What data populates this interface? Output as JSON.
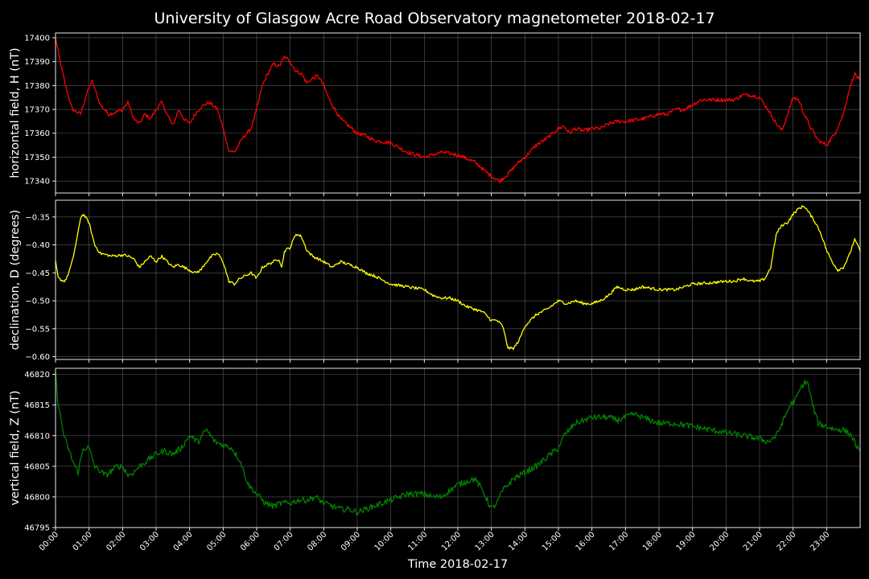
{
  "title": "University of Glasgow Acre Road Observatory magnetometer 2018-02-17",
  "chart_data": {
    "type": "line",
    "title": "University of Glasgow Acre Road Observatory magnetometer 2018-02-17",
    "xlabel": "Time 2018-02-17",
    "x_ticks": [
      "00:00",
      "01:00",
      "02:00",
      "03:00",
      "04:00",
      "05:00",
      "06:00",
      "07:00",
      "08:00",
      "09:00",
      "10:00",
      "11:00",
      "12:00",
      "13:00",
      "14:00",
      "15:00",
      "16:00",
      "17:00",
      "18:00",
      "19:00",
      "20:00",
      "21:00",
      "22:00",
      "23:00"
    ],
    "xlim": [
      "00:00",
      "24:00"
    ],
    "grid": true,
    "background": "#000000",
    "panels": [
      {
        "ylabel": "horizontal field, H (nT)",
        "color": "#ff0000",
        "ylim": [
          17335,
          17402
        ],
        "yticks": [
          17340,
          17350,
          17360,
          17370,
          17380,
          17390,
          17400
        ],
        "noise": 0.8,
        "series": {
          "x": [
            "00:00",
            "00:10",
            "00:20",
            "00:30",
            "00:45",
            "00:55",
            "01:05",
            "01:20",
            "01:35",
            "01:50",
            "02:00",
            "02:10",
            "02:20",
            "02:30",
            "02:40",
            "02:50",
            "03:00",
            "03:10",
            "03:20",
            "03:30",
            "03:40",
            "03:50",
            "04:00",
            "04:10",
            "04:20",
            "04:35",
            "04:50",
            "05:00",
            "05:10",
            "05:20",
            "05:35",
            "05:50",
            "06:00",
            "06:10",
            "06:20",
            "06:30",
            "06:40",
            "06:50",
            "07:00",
            "07:10",
            "07:20",
            "07:30",
            "07:40",
            "07:50",
            "08:00",
            "08:10",
            "08:20",
            "08:30",
            "08:45",
            "09:00",
            "09:15",
            "09:30",
            "10:00",
            "10:30",
            "11:00",
            "11:30",
            "12:00",
            "12:30",
            "12:45",
            "13:00",
            "13:15",
            "13:30",
            "13:45",
            "14:00",
            "14:20",
            "14:40",
            "15:00",
            "15:10",
            "15:20",
            "15:30",
            "15:45",
            "16:00",
            "16:15",
            "16:30",
            "16:45",
            "17:00",
            "17:30",
            "17:45",
            "18:00",
            "18:15",
            "18:30",
            "18:45",
            "19:00",
            "19:15",
            "19:30",
            "19:45",
            "20:00",
            "20:15",
            "20:30",
            "20:45",
            "21:00",
            "21:15",
            "21:30",
            "21:40",
            "21:50",
            "22:00",
            "22:10",
            "22:20",
            "22:30",
            "22:45",
            "23:00",
            "23:15",
            "23:30",
            "23:40",
            "23:50",
            "24:00"
          ],
          "y": [
            17400,
            17388,
            17378,
            17370,
            17368,
            17376,
            17382,
            17372,
            17368,
            17369,
            17370,
            17373,
            17366,
            17364,
            17368,
            17366,
            17370,
            17373,
            17368,
            17363,
            17370,
            17366,
            17364,
            17368,
            17371,
            17373,
            17370,
            17362,
            17353,
            17352,
            17358,
            17362,
            17370,
            17380,
            17385,
            17389,
            17388,
            17392,
            17390,
            17386,
            17385,
            17381,
            17383,
            17384,
            17380,
            17374,
            17370,
            17366,
            17363,
            17360,
            17359,
            17357,
            17356,
            17352,
            17350,
            17352,
            17351,
            17348,
            17345,
            17342,
            17340,
            17343,
            17347,
            17350,
            17355,
            17358,
            17362,
            17363,
            17360,
            17362,
            17361,
            17362,
            17362,
            17364,
            17365,
            17365,
            17366,
            17367,
            17368,
            17368,
            17370,
            17370,
            17372,
            17374,
            17374,
            17374,
            17374,
            17374,
            17376,
            17376,
            17375,
            17370,
            17364,
            17361,
            17368,
            17375,
            17374,
            17368,
            17363,
            17357,
            17355,
            17360,
            17368,
            17378,
            17385,
            17382
          ]
        }
      },
      {
        "ylabel": "declination, D (degrees)",
        "color": "#ffff00",
        "ylim": [
          -0.605,
          -0.32
        ],
        "yticks": [
          -0.6,
          -0.55,
          -0.5,
          -0.45,
          -0.4,
          -0.35
        ],
        "ytick_labels": [
          "−0.60",
          "−0.55",
          "−0.50",
          "−0.45",
          "−0.40",
          "−0.35"
        ],
        "noise": 0.0025,
        "series": {
          "x": [
            "00:00",
            "00:05",
            "00:15",
            "00:20",
            "00:30",
            "00:40",
            "00:45",
            "00:50",
            "01:00",
            "01:05",
            "01:10",
            "01:20",
            "01:40",
            "02:00",
            "02:10",
            "02:20",
            "02:30",
            "02:40",
            "02:50",
            "03:00",
            "03:10",
            "03:20",
            "03:30",
            "03:40",
            "03:50",
            "04:00",
            "04:10",
            "04:20",
            "04:30",
            "04:40",
            "04:50",
            "05:00",
            "05:10",
            "05:20",
            "05:30",
            "05:40",
            "05:50",
            "06:00",
            "06:10",
            "06:20",
            "06:30",
            "06:40",
            "06:45",
            "06:50",
            "07:00",
            "07:10",
            "07:20",
            "07:30",
            "07:40",
            "07:50",
            "08:00",
            "08:15",
            "08:30",
            "09:00",
            "09:15",
            "09:30",
            "10:00",
            "10:30",
            "11:00",
            "11:15",
            "11:30",
            "11:45",
            "12:00",
            "12:15",
            "12:30",
            "12:45",
            "13:00",
            "13:10",
            "13:20",
            "13:30",
            "13:40",
            "13:50",
            "14:00",
            "14:20",
            "14:40",
            "15:00",
            "15:15",
            "15:30",
            "15:45",
            "16:00",
            "16:15",
            "16:30",
            "16:45",
            "17:00",
            "17:15",
            "17:30",
            "18:00",
            "18:15",
            "18:30",
            "18:45",
            "19:00",
            "19:30",
            "20:00",
            "20:15",
            "20:30",
            "20:45",
            "21:00",
            "21:10",
            "21:20",
            "21:30",
            "21:40",
            "21:50",
            "22:00",
            "22:10",
            "22:20",
            "22:30",
            "22:40",
            "22:50",
            "23:00",
            "23:10",
            "23:20",
            "23:30",
            "23:40",
            "23:50",
            "24:00"
          ],
          "y": [
            -0.43,
            -0.46,
            -0.465,
            -0.46,
            -0.43,
            -0.38,
            -0.35,
            -0.345,
            -0.36,
            -0.38,
            -0.4,
            -0.415,
            -0.42,
            -0.418,
            -0.42,
            -0.425,
            -0.44,
            -0.43,
            -0.42,
            -0.43,
            -0.42,
            -0.43,
            -0.44,
            -0.435,
            -0.44,
            -0.445,
            -0.45,
            -0.445,
            -0.43,
            -0.42,
            -0.415,
            -0.43,
            -0.465,
            -0.47,
            -0.46,
            -0.455,
            -0.45,
            -0.46,
            -0.44,
            -0.435,
            -0.43,
            -0.425,
            -0.44,
            -0.41,
            -0.405,
            -0.38,
            -0.385,
            -0.41,
            -0.42,
            -0.425,
            -0.43,
            -0.44,
            -0.43,
            -0.44,
            -0.45,
            -0.455,
            -0.47,
            -0.475,
            -0.48,
            -0.49,
            -0.495,
            -0.495,
            -0.5,
            -0.51,
            -0.515,
            -0.52,
            -0.535,
            -0.535,
            -0.545,
            -0.585,
            -0.585,
            -0.57,
            -0.545,
            -0.525,
            -0.515,
            -0.5,
            -0.505,
            -0.5,
            -0.505,
            -0.505,
            -0.5,
            -0.49,
            -0.475,
            -0.48,
            -0.48,
            -0.475,
            -0.48,
            -0.48,
            -0.48,
            -0.475,
            -0.47,
            -0.468,
            -0.465,
            -0.465,
            -0.46,
            -0.465,
            -0.465,
            -0.46,
            -0.44,
            -0.38,
            -0.365,
            -0.36,
            -0.345,
            -0.335,
            -0.33,
            -0.345,
            -0.36,
            -0.38,
            -0.41,
            -0.43,
            -0.445,
            -0.44,
            -0.42,
            -0.39,
            -0.41
          ]
        }
      },
      {
        "ylabel": "vertical field, Z (nT)",
        "color": "#008000",
        "ylim": [
          46795,
          46821
        ],
        "yticks": [
          46795,
          46800,
          46805,
          46810,
          46815,
          46820
        ],
        "noise": 0.5,
        "series": {
          "x": [
            "00:00",
            "00:05",
            "00:15",
            "00:30",
            "00:40",
            "00:50",
            "01:00",
            "01:10",
            "01:30",
            "01:50",
            "02:00",
            "02:10",
            "02:20",
            "02:30",
            "02:45",
            "03:00",
            "03:15",
            "03:30",
            "03:45",
            "04:00",
            "04:15",
            "04:30",
            "04:45",
            "05:00",
            "05:15",
            "05:30",
            "05:45",
            "06:00",
            "06:15",
            "06:30",
            "06:45",
            "07:00",
            "07:15",
            "07:30",
            "07:45",
            "08:00",
            "08:15",
            "08:30",
            "08:45",
            "09:00",
            "09:15",
            "09:30",
            "09:45",
            "10:00",
            "10:15",
            "10:30",
            "10:45",
            "11:00",
            "11:15",
            "11:30",
            "11:45",
            "12:00",
            "12:15",
            "12:30",
            "12:45",
            "13:00",
            "13:10",
            "13:20",
            "13:40",
            "14:00",
            "14:20",
            "14:40",
            "15:00",
            "15:10",
            "15:20",
            "15:30",
            "15:45",
            "16:00",
            "16:15",
            "16:30",
            "16:45",
            "17:00",
            "17:15",
            "17:30",
            "17:45",
            "18:00",
            "18:30",
            "19:00",
            "19:30",
            "20:00",
            "20:30",
            "21:00",
            "21:15",
            "21:30",
            "21:45",
            "21:55",
            "22:05",
            "22:15",
            "22:25",
            "22:35",
            "22:45",
            "23:00",
            "23:15",
            "23:30",
            "23:45",
            "24:00"
          ],
          "y": [
            46820,
            46815,
            46810,
            46806,
            46804,
            46808,
            46808,
            46805,
            46803.5,
            46805,
            46805,
            46803.5,
            46804,
            46805,
            46806,
            46807,
            46807.5,
            46807,
            46808,
            46810,
            46809,
            46811,
            46809,
            46808.5,
            46808,
            46806,
            46802,
            46800.5,
            46799,
            46798.5,
            46799,
            46799,
            46799.5,
            46799.5,
            46800,
            46799,
            46798.5,
            46798,
            46798,
            46797.5,
            46798,
            46798.5,
            46799,
            46799.5,
            46800,
            46800.5,
            46800.5,
            46800.5,
            46800,
            46800,
            46801,
            46802,
            46802.5,
            46803,
            46801,
            46798,
            46799,
            46801,
            46803,
            46804,
            46805,
            46806.5,
            46808,
            46810,
            46811,
            46812,
            46812.5,
            46813,
            46813,
            46813,
            46812.5,
            46813,
            46813.5,
            46813,
            46812.5,
            46812,
            46812,
            46811.5,
            46811,
            46810.5,
            46810,
            46809.5,
            46809,
            46810,
            46813,
            46815,
            46816,
            46818,
            46819,
            46815,
            46812,
            46811.5,
            46811,
            46811,
            46810,
            46807
          ]
        }
      }
    ]
  }
}
